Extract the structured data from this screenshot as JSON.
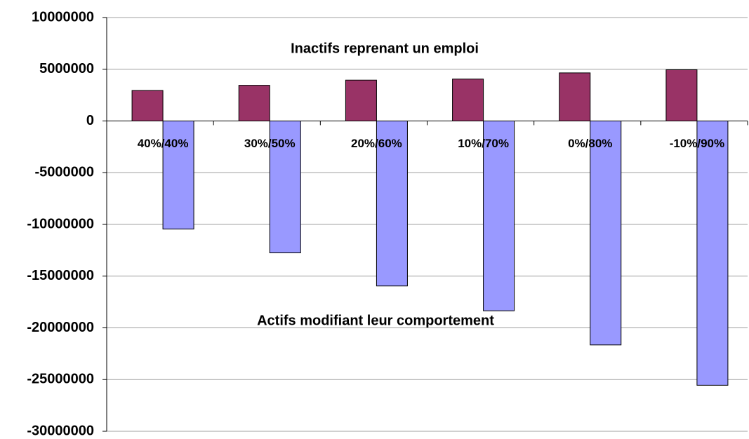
{
  "chart_data": {
    "type": "bar",
    "categories": [
      "40%/40%",
      "30%/50%",
      "20%/60%",
      "10%/70%",
      "0%/80%",
      "-10%/90%"
    ],
    "series": [
      {
        "color": "#993366",
        "values": [
          2950000,
          3450000,
          3950000,
          4050000,
          4650000,
          4950000
        ]
      },
      {
        "color": "#9999ff",
        "values": [
          -10450000,
          -12750000,
          -15950000,
          -18350000,
          -21650000,
          -25550000
        ]
      }
    ],
    "annotations": [
      "Inactifs reprenant un emploi",
      "Actifs modifiant leur comportement"
    ],
    "ylim": [
      -30000000,
      10000000
    ],
    "yticks": [
      -30000000,
      -25000000,
      -20000000,
      -15000000,
      -10000000,
      -5000000,
      0,
      5000000,
      10000000
    ],
    "grid": true
  }
}
